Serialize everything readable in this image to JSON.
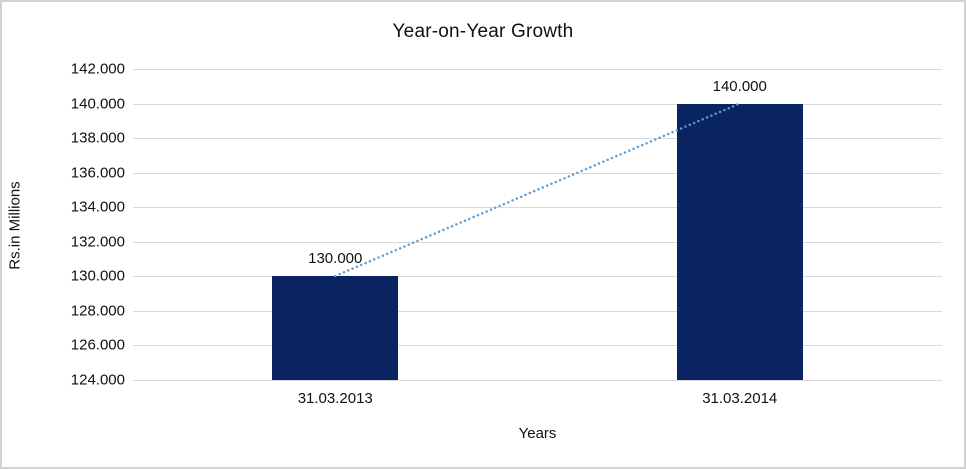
{
  "chart_data": {
    "type": "bar",
    "title": "Year-on-Year Growth",
    "xlabel": "Years",
    "ylabel": "Rs.in Millions",
    "categories": [
      "31.03.2013",
      "31.03.2014"
    ],
    "values": [
      130000,
      140000
    ],
    "data_labels": [
      "130.000",
      "140.000"
    ],
    "ylim": [
      124000,
      142000
    ],
    "y_tick_step": 2000,
    "y_ticks": [
      {
        "value": 124000,
        "label": "124.000"
      },
      {
        "value": 126000,
        "label": "126.000"
      },
      {
        "value": 128000,
        "label": "128.000"
      },
      {
        "value": 130000,
        "label": "130.000"
      },
      {
        "value": 132000,
        "label": "132.000"
      },
      {
        "value": 134000,
        "label": "134.000"
      },
      {
        "value": 136000,
        "label": "136.000"
      },
      {
        "value": 138000,
        "label": "138.000"
      },
      {
        "value": 140000,
        "label": "140.000"
      },
      {
        "value": 142000,
        "label": "142.000"
      }
    ],
    "grid": true,
    "legend": "none",
    "trendline": {
      "type": "linear",
      "style": "dotted",
      "from": {
        "category": "31.03.2013",
        "value": 130000
      },
      "to": {
        "category": "31.03.2014",
        "value": 140000
      }
    },
    "colors": {
      "bar": "#0a2462",
      "trendline": "#5b9bd5",
      "gridline": "#d9d9d9",
      "text": "#111111",
      "background": "#ffffff",
      "border": "#d2d2d2"
    }
  }
}
